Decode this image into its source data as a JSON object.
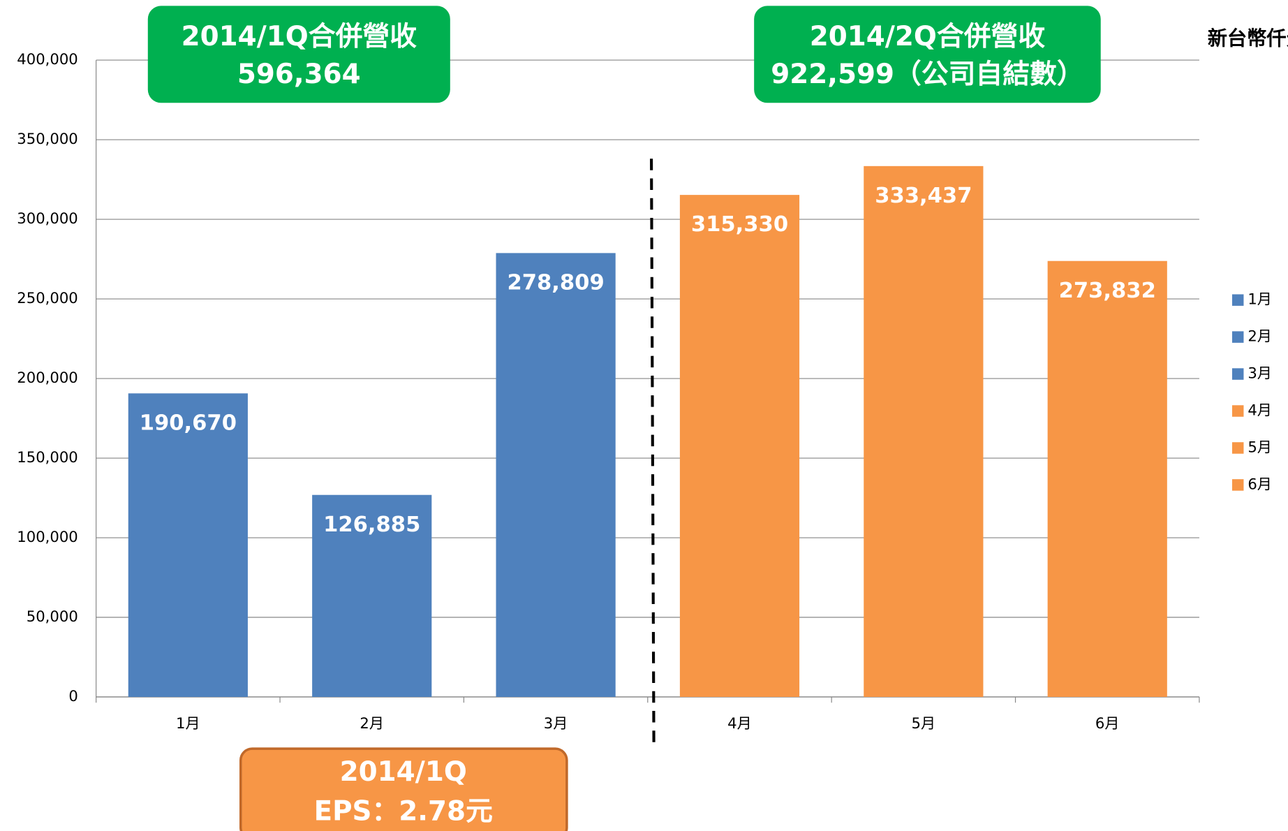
{
  "chart_data": {
    "type": "bar",
    "unit_label": "新台幣仟元",
    "annotations": [
      "2014/1Q合併營收",
      "596,364",
      "2014/2Q合併營收",
      "922,599（公司自結數）",
      "2014/1Q",
      "EPS：2.78元"
    ],
    "categories": [
      "1月",
      "2月",
      "3月",
      "4月",
      "5月",
      "6月"
    ],
    "values": [
      190670,
      126885,
      278809,
      315330,
      333437,
      273832
    ],
    "value_labels": [
      "190,670",
      "126,885",
      "278,809",
      "315,330",
      "333,437",
      "273,832"
    ],
    "colors": [
      "#4f81bd",
      "#4f81bd",
      "#4f81bd",
      "#f79646",
      "#f79646",
      "#f79646"
    ],
    "ylim": [
      0,
      400000
    ],
    "yticks": [
      0,
      {
        "value": 50000,
        "label": "50,000"
      },
      {
        "value": 100000,
        "label": "100,000"
      },
      {
        "value": 150000,
        "label": "150,000"
      },
      {
        "value": 200000,
        "label": "200,000"
      },
      {
        "value": 250000,
        "label": "250,000"
      },
      {
        "value": 300000,
        "label": "300,000"
      },
      {
        "value": 350000,
        "label": "350,000"
      },
      {
        "value": 400000,
        "label": "400,000"
      }
    ],
    "grid": true,
    "legend": "right"
  }
}
